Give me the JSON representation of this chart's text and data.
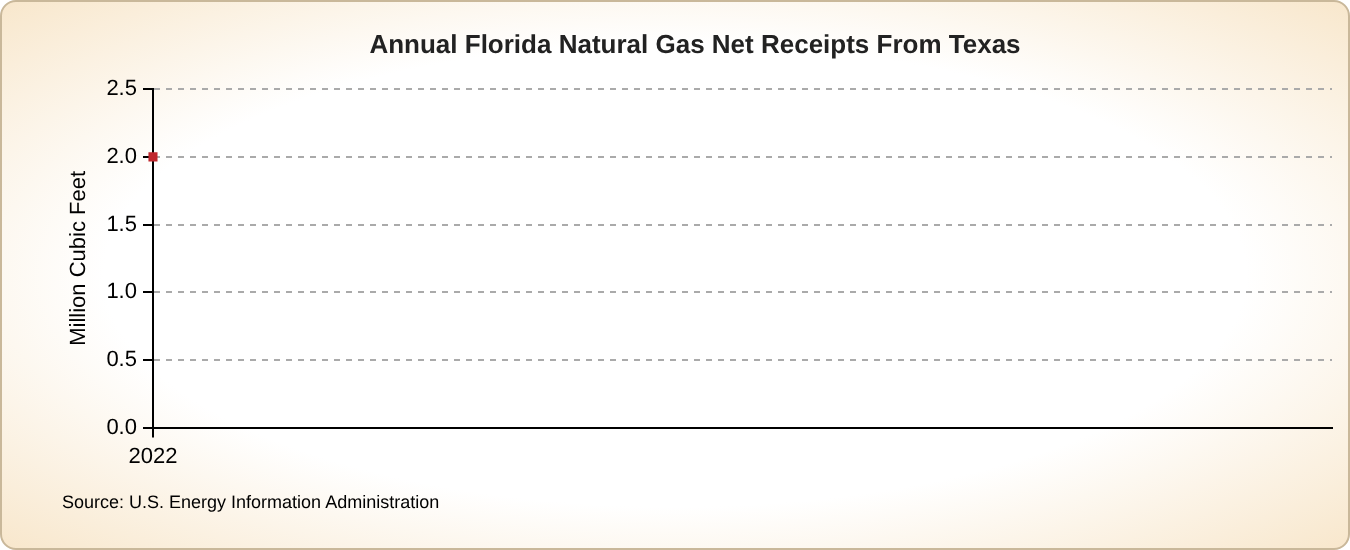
{
  "chart_data": {
    "type": "scatter",
    "title": "Annual Florida Natural Gas Net Receipts From Texas",
    "ylabel": "Million Cubic Feet",
    "categories": [
      "2022"
    ],
    "series": [
      {
        "color": "#c0272d",
        "values": [
          2.0
        ]
      }
    ],
    "ylim": [
      0,
      2.5
    ],
    "yticks": [
      {
        "value": 0,
        "label": "0.0"
      },
      {
        "value": 0.5,
        "label": "0.5"
      },
      {
        "value": 1,
        "label": "1.0"
      },
      {
        "value": 1.5,
        "label": "1.5"
      },
      {
        "value": 2,
        "label": "2.0"
      },
      {
        "value": 2.5,
        "label": "2.5"
      }
    ],
    "grid": true,
    "legend": false,
    "marker": "square",
    "annotations": [
      "Source: U.S. Energy Information Administration"
    ]
  }
}
